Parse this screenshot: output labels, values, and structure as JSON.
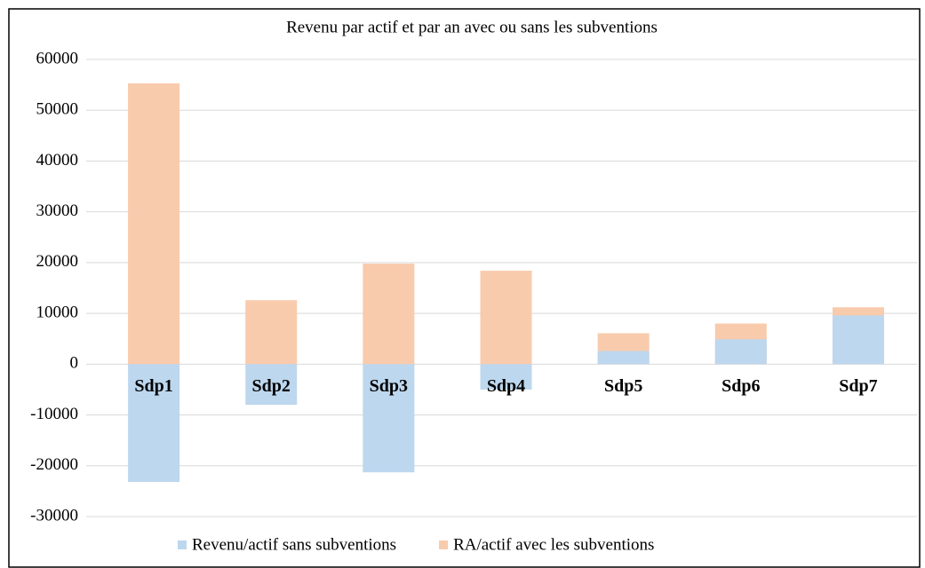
{
  "chart_data": {
    "type": "bar",
    "title": "Revenu par actif et par an avec ou sans les subventions",
    "categories": [
      "Sdp1",
      "Sdp2",
      "Sdp3",
      "Sdp4",
      "Sdp5",
      "Sdp6",
      "Sdp7"
    ],
    "series": [
      {
        "name": "Revenu/actif sans subventions",
        "color": "#bdd7ee",
        "values": [
          -23200,
          -8000,
          -21300,
          -5000,
          2600,
          4900,
          9600
        ]
      },
      {
        "name": "RA/actif avec les subventions",
        "color": "#f8cbad",
        "values": [
          55300,
          12600,
          19800,
          18400,
          6100,
          8000,
          11200
        ]
      }
    ],
    "ylim": [
      -30000,
      60000
    ],
    "yticks": [
      -30000,
      -20000,
      -10000,
      0,
      10000,
      20000,
      30000,
      40000,
      50000,
      60000
    ],
    "grid": true,
    "legend": "bottom"
  }
}
